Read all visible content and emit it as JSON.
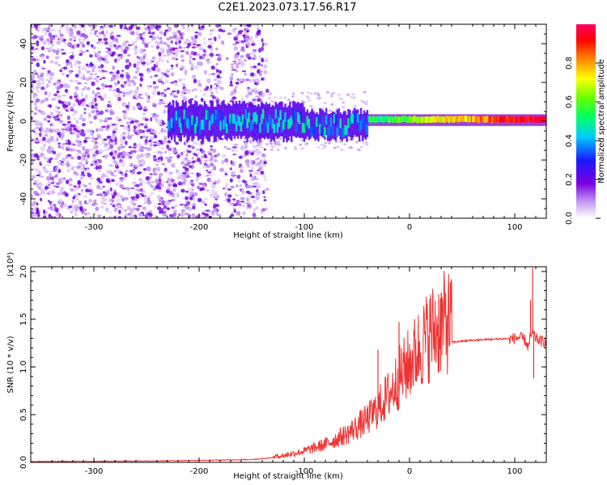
{
  "figure": {
    "title": "C2E1.2023.073.17.56.R17"
  },
  "chart_data": [
    {
      "type": "heatmap",
      "name": "spectrogram",
      "xlabel": "Height of straight line (km)",
      "ylabel": "Frequency (Hz)",
      "xlim": [
        -360,
        130
      ],
      "ylim": [
        -50,
        50
      ],
      "xticks": [
        -300,
        -200,
        -100,
        0,
        100
      ],
      "yticks": [
        40,
        20,
        0,
        -20,
        -40
      ],
      "colorbar": {
        "label": "Normalized spectral amplitude",
        "range": [
          0.0,
          1.0
        ],
        "ticks": [
          0.0,
          0.2,
          0.4,
          0.6,
          0.8
        ],
        "colors": [
          "#ffffff",
          "#b98cf0",
          "#7a00e0",
          "#1a1aff",
          "#00ccff",
          "#00ff66",
          "#66ff00",
          "#ffff00",
          "#ff8800",
          "#ff0000",
          "#ff0066"
        ]
      },
      "features": {
        "noise_region_km": [
          -360,
          -145
        ],
        "main_band_center_hz": 0,
        "band_start_km": -230,
        "band_end_km": 130,
        "strong_signal_from_km": -40
      }
    },
    {
      "type": "line",
      "name": "snr",
      "xlabel": "Height of straight line (km)",
      "ylabel": "SNR (10 * v/v)",
      "scale_label": "(x10⁴)",
      "xlim": [
        -360,
        130
      ],
      "ylim": [
        0.0,
        2.05
      ],
      "xticks": [
        -300,
        -200,
        -100,
        0,
        100
      ],
      "yticks": [
        0.0,
        0.5,
        1.0,
        1.5,
        2.0
      ],
      "series": [
        {
          "name": "SNR",
          "color": "#ee3333",
          "x": [
            -360,
            -300,
            -200,
            -150,
            -120,
            -100,
            -80,
            -60,
            -40,
            -30,
            -20,
            -10,
            0,
            10,
            20,
            30,
            40,
            60,
            80,
            100,
            105,
            110,
            113,
            115,
            117,
            120,
            125,
            130
          ],
          "y": [
            0.01,
            0.01,
            0.02,
            0.03,
            0.06,
            0.1,
            0.16,
            0.25,
            0.38,
            0.48,
            0.6,
            0.75,
            0.88,
            1.02,
            1.15,
            1.22,
            1.26,
            1.28,
            1.29,
            1.3,
            1.31,
            1.28,
            1.2,
            1.32,
            1.35,
            1.3,
            1.27,
            1.26
          ]
        }
      ],
      "spikes": [
        {
          "x": -10,
          "y": 1.47
        },
        {
          "x": -30,
          "y": 1.18
        },
        {
          "x": 117,
          "y": 2.04
        },
        {
          "x": 115,
          "y": 1.7
        },
        {
          "x": 118,
          "y": 0.88
        }
      ]
    }
  ]
}
